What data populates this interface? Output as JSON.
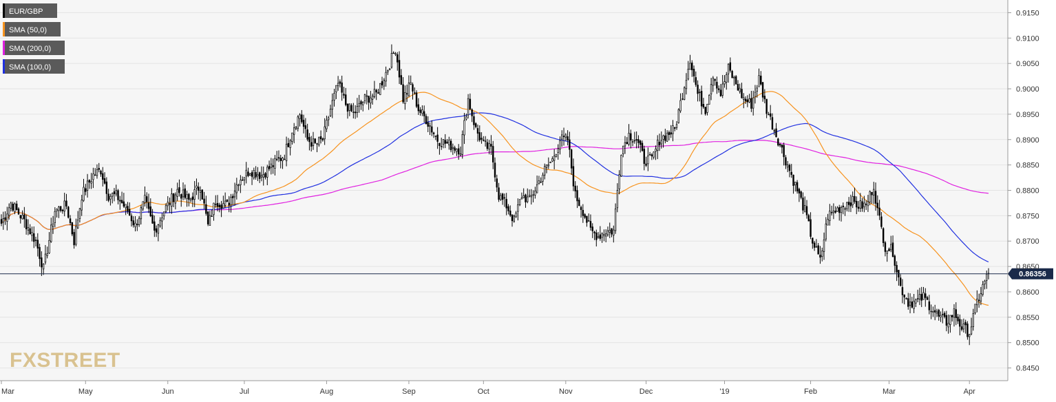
{
  "chart_data": {
    "type": "candlestick",
    "symbol": "EUR/GBP",
    "last_price_label": "0.86356",
    "last_price": 0.86356,
    "ylim": [
      0.8425,
      0.9175
    ],
    "y_ticks": [
      "0.8450",
      "0.8500",
      "0.8550",
      "0.8600",
      "0.8650",
      "0.8700",
      "0.8750",
      "0.8800",
      "0.8850",
      "0.8900",
      "0.8950",
      "0.9000",
      "0.9050",
      "0.9100",
      "0.9150"
    ],
    "x_ticks": [
      {
        "label": "Mar",
        "bar": 0
      },
      {
        "label": "May",
        "bar": 44
      },
      {
        "label": "Jun",
        "bar": 87
      },
      {
        "label": "Jul",
        "bar": 127
      },
      {
        "label": "Aug",
        "bar": 170
      },
      {
        "label": "Sep",
        "bar": 213
      },
      {
        "label": "Oct",
        "bar": 252
      },
      {
        "label": "Nov",
        "bar": 295
      },
      {
        "label": "Dec",
        "bar": 337
      },
      {
        "label": "'19",
        "bar": 378
      },
      {
        "label": "Feb",
        "bar": 423
      },
      {
        "label": "Mar",
        "bar": 464
      },
      {
        "label": "Apr",
        "bar": 506
      }
    ],
    "num_bars": 517,
    "legend": [
      {
        "label": "EUR/GBP",
        "color": "#000000"
      },
      {
        "label": "SMA (50,0)",
        "color": "#f7931e"
      },
      {
        "label": "SMA (200,0)",
        "color": "#e020e0"
      },
      {
        "label": "SMA (100,0)",
        "color": "#2030e0"
      }
    ],
    "colors": {
      "up_candle": "#ffffff",
      "down_candle": "#000000",
      "sma50": "#f7931e",
      "sma100": "#2030e0",
      "sma200": "#e020e0",
      "price_line": "#1a2a4a"
    },
    "grid": true,
    "watermark": "FXSTREET",
    "price_anchors": [
      [
        0,
        0.8735
      ],
      [
        5,
        0.8775
      ],
      [
        12,
        0.874
      ],
      [
        18,
        0.87
      ],
      [
        22,
        0.8645
      ],
      [
        28,
        0.876
      ],
      [
        34,
        0.877
      ],
      [
        38,
        0.87
      ],
      [
        42,
        0.879
      ],
      [
        48,
        0.883
      ],
      [
        52,
        0.884
      ],
      [
        56,
        0.879
      ],
      [
        60,
        0.879
      ],
      [
        66,
        0.876
      ],
      [
        70,
        0.873
      ],
      [
        75,
        0.878
      ],
      [
        80,
        0.872
      ],
      [
        85,
        0.876
      ],
      [
        92,
        0.88
      ],
      [
        98,
        0.878
      ],
      [
        104,
        0.881
      ],
      [
        108,
        0.873
      ],
      [
        112,
        0.878
      ],
      [
        118,
        0.877
      ],
      [
        124,
        0.882
      ],
      [
        130,
        0.884
      ],
      [
        136,
        0.883
      ],
      [
        142,
        0.885
      ],
      [
        148,
        0.887
      ],
      [
        152,
        0.892
      ],
      [
        156,
        0.895
      ],
      [
        160,
        0.89
      ],
      [
        164,
        0.889
      ],
      [
        168,
        0.89
      ],
      [
        172,
        0.896
      ],
      [
        176,
        0.901
      ],
      [
        180,
        0.897
      ],
      [
        184,
        0.895
      ],
      [
        190,
        0.898
      ],
      [
        196,
        0.899
      ],
      [
        202,
        0.904
      ],
      [
        206,
        0.908
      ],
      [
        210,
        0.898
      ],
      [
        214,
        0.901
      ],
      [
        218,
        0.896
      ],
      [
        222,
        0.894
      ],
      [
        228,
        0.89
      ],
      [
        234,
        0.889
      ],
      [
        240,
        0.888
      ],
      [
        244,
        0.898
      ],
      [
        248,
        0.892
      ],
      [
        252,
        0.889
      ],
      [
        256,
        0.888
      ],
      [
        260,
        0.879
      ],
      [
        264,
        0.877
      ],
      [
        268,
        0.874
      ],
      [
        272,
        0.879
      ],
      [
        276,
        0.878
      ],
      [
        280,
        0.881
      ],
      [
        284,
        0.884
      ],
      [
        288,
        0.886
      ],
      [
        292,
        0.89
      ],
      [
        296,
        0.89
      ],
      [
        300,
        0.879
      ],
      [
        304,
        0.876
      ],
      [
        308,
        0.872
      ],
      [
        312,
        0.871
      ],
      [
        316,
        0.872
      ],
      [
        320,
        0.872
      ],
      [
        324,
        0.888
      ],
      [
        328,
        0.891
      ],
      [
        332,
        0.89
      ],
      [
        336,
        0.886
      ],
      [
        340,
        0.886
      ],
      [
        344,
        0.89
      ],
      [
        348,
        0.891
      ],
      [
        352,
        0.892
      ],
      [
        356,
        0.899
      ],
      [
        360,
        0.906
      ],
      [
        364,
        0.899
      ],
      [
        368,
        0.896
      ],
      [
        372,
        0.903
      ],
      [
        376,
        0.899
      ],
      [
        380,
        0.904
      ],
      [
        384,
        0.901
      ],
      [
        388,
        0.898
      ],
      [
        392,
        0.897
      ],
      [
        396,
        0.902
      ],
      [
        400,
        0.896
      ],
      [
        404,
        0.892
      ],
      [
        408,
        0.888
      ],
      [
        412,
        0.884
      ],
      [
        416,
        0.88
      ],
      [
        420,
        0.876
      ],
      [
        424,
        0.87
      ],
      [
        428,
        0.866
      ],
      [
        432,
        0.875
      ],
      [
        436,
        0.876
      ],
      [
        440,
        0.877
      ],
      [
        444,
        0.878
      ],
      [
        448,
        0.877
      ],
      [
        452,
        0.877
      ],
      [
        456,
        0.881
      ],
      [
        458,
        0.876
      ],
      [
        462,
        0.869
      ],
      [
        466,
        0.868
      ],
      [
        470,
        0.861
      ],
      [
        474,
        0.858
      ],
      [
        478,
        0.858
      ],
      [
        482,
        0.859
      ],
      [
        486,
        0.857
      ],
      [
        490,
        0.855
      ],
      [
        494,
        0.854
      ],
      [
        498,
        0.856
      ],
      [
        502,
        0.853
      ],
      [
        506,
        0.852
      ],
      [
        510,
        0.858
      ],
      [
        514,
        0.862
      ],
      [
        516,
        0.8636
      ]
    ]
  }
}
